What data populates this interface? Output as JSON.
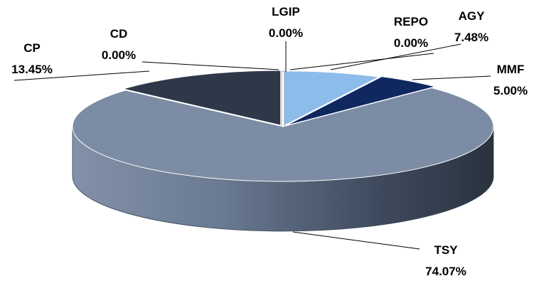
{
  "chart_data": {
    "type": "pie",
    "style": "3d",
    "title": "",
    "slices": [
      {
        "name": "LGIP",
        "value": 0.0,
        "label": "0.00%",
        "color": "#ffffff"
      },
      {
        "name": "REPO",
        "value": 0.0,
        "label": "0.00%",
        "color": "#dbe8f6"
      },
      {
        "name": "AGY",
        "value": 7.48,
        "label": "7.48%",
        "color": "#8ebcea"
      },
      {
        "name": "MMF",
        "value": 5.0,
        "label": "5.00%",
        "color": "#0f2860"
      },
      {
        "name": "TSY",
        "value": 74.07,
        "label": "74.07%",
        "color": "#7c8ca4"
      },
      {
        "name": "CP",
        "value": 13.45,
        "label": "13.45%",
        "color": "#2e3849"
      },
      {
        "name": "CD",
        "value": 0.0,
        "label": "0.00%",
        "color": "#1f2631"
      }
    ]
  }
}
